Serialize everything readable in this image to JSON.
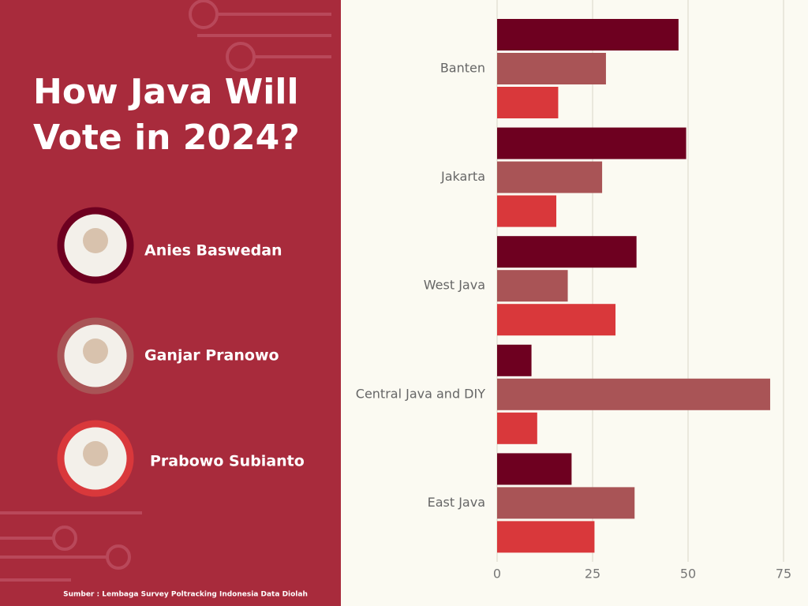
{
  "chart_data": {
    "type": "bar",
    "orientation": "horizontal",
    "title": "How Java Will Vote in 2024?",
    "source": "Sumber : Lembaga Survey Poltracking Indonesia Data Diolah",
    "categories": [
      "Banten",
      "Jakarta",
      "West Java",
      "Central Java and DIY",
      "East Java"
    ],
    "series": [
      {
        "name": "Anies Baswedan",
        "color": "#6e0020",
        "values": [
          47.5,
          49.5,
          36.5,
          9,
          19.5
        ]
      },
      {
        "name": "Ganjar Pranowo",
        "color": "#a95456",
        "values": [
          28.5,
          27.5,
          18.5,
          71.5,
          36
        ]
      },
      {
        "name": "Prabowo Subianto",
        "color": "#d9383b",
        "values": [
          16,
          15.5,
          31,
          10.5,
          25.5
        ]
      }
    ],
    "xlim": [
      0,
      75
    ],
    "xticks": [
      0,
      25,
      50,
      75
    ],
    "grid": true
  }
}
